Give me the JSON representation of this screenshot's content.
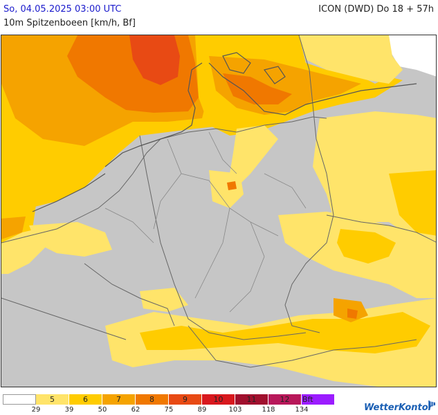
{
  "header": {
    "date_time": "So, 04.05.2025 03:00 UTC",
    "model_run": "ICON (DWD) Do 18 + 57h",
    "parameter": "10m Spitzenboeen [km/h, Bf]"
  },
  "legend": {
    "classes": [
      {
        "bf": "",
        "color": "#ffffff"
      },
      {
        "bf": "5",
        "color": "#ffe46a"
      },
      {
        "bf": "6",
        "color": "#ffcc00"
      },
      {
        "bf": "7",
        "color": "#f5a300"
      },
      {
        "bf": "8",
        "color": "#f07800"
      },
      {
        "bf": "9",
        "color": "#e84a14"
      },
      {
        "bf": "10",
        "color": "#d8181e"
      },
      {
        "bf": "11",
        "color": "#a0102e"
      },
      {
        "bf": "12",
        "color": "#b8185a"
      },
      {
        "bf": "Bft",
        "color": "#9b1cff"
      }
    ],
    "thresholds_kmh": [
      "29",
      "39",
      "50",
      "62",
      "75",
      "89",
      "103",
      "118",
      "134"
    ]
  },
  "brand": {
    "name": "WetterKontor",
    "icon": "windsock-icon"
  },
  "map": {
    "land_color": "#c6c6c6",
    "border_color": "#666666"
  }
}
